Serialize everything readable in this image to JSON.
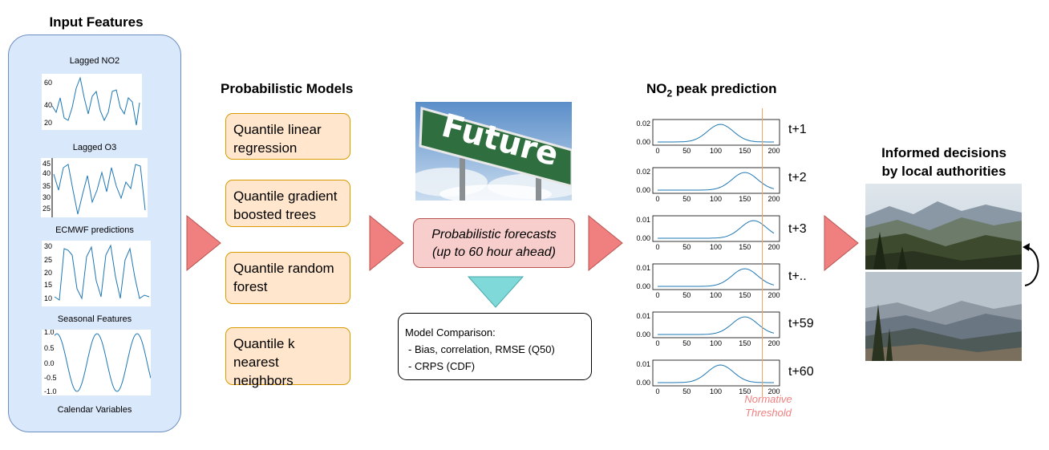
{
  "input_features": {
    "title": "Input Features",
    "items": [
      {
        "label": "Lagged NO2",
        "yticks": [
          "60",
          "40",
          "20"
        ]
      },
      {
        "label": "Lagged O3",
        "yticks": [
          "45",
          "40",
          "35",
          "30",
          "25"
        ]
      },
      {
        "label": "ECMWF predictions",
        "yticks": [
          "30",
          "25",
          "20",
          "15",
          "10"
        ]
      },
      {
        "label": "Seasonal Features",
        "yticks": [
          "1.0",
          "0.5",
          "0.0",
          "-0.5",
          "-1.0"
        ]
      },
      {
        "label": "Calendar Variables"
      }
    ]
  },
  "models": {
    "title": "Probabilistic Models",
    "items": [
      "Quantile linear regression",
      "Quantile gradient boosted trees",
      "Quantile random forest",
      "Quantile k nearest neighbors"
    ]
  },
  "future_sign": {
    "text": "Future"
  },
  "forecast_box": {
    "line1": "Probabilistic forecasts",
    "line2": "(up to 60 hour ahead)"
  },
  "comparison": {
    "title": "Model Comparison:",
    "items": [
      "- Bias, correlation, RMSE (Q50)",
      "- CRPS (CDF)"
    ]
  },
  "prediction": {
    "title_main": "NO",
    "title_sub": "2",
    "title_rest": " peak prediction",
    "threshold_line1": "Normative",
    "threshold_line2": "Threshold",
    "xticks": [
      "0",
      "50",
      "100",
      "150",
      "200"
    ],
    "panels": [
      {
        "label": "t+1",
        "ytop": "0.02",
        "ybottom": "0.00",
        "peak_x": 108
      },
      {
        "label": "t+2",
        "ytop": "0.02",
        "ybottom": "0.00",
        "peak_x": 150
      },
      {
        "label": "t+3",
        "ytop": "0.01",
        "ybottom": "0.00",
        "peak_x": 165
      },
      {
        "label": "t+..",
        "ytop": "0.01",
        "ybottom": "0.00",
        "peak_x": 150
      },
      {
        "label": "t+59",
        "ytop": "0.01",
        "ybottom": "0.00",
        "peak_x": 150
      },
      {
        "label": "t+60",
        "ytop": "0.01",
        "ybottom": "0.00",
        "peak_x": 108
      }
    ]
  },
  "decisions": {
    "line1": "Informed decisions",
    "line2": "by local authorities"
  },
  "colors": {
    "panel_fill": "#dae8fc",
    "panel_border": "#6c8ebf",
    "model_fill": "#ffe6cc",
    "model_border": "#d79b00",
    "forecast_fill": "#f8cecc",
    "forecast_border": "#b85450",
    "arrow_red": "#f08080",
    "arrow_cyan": "#7fd9d9",
    "line_blue": "#1f77b4",
    "threshold": "#f4a460",
    "threshold_text": "#f08080"
  }
}
